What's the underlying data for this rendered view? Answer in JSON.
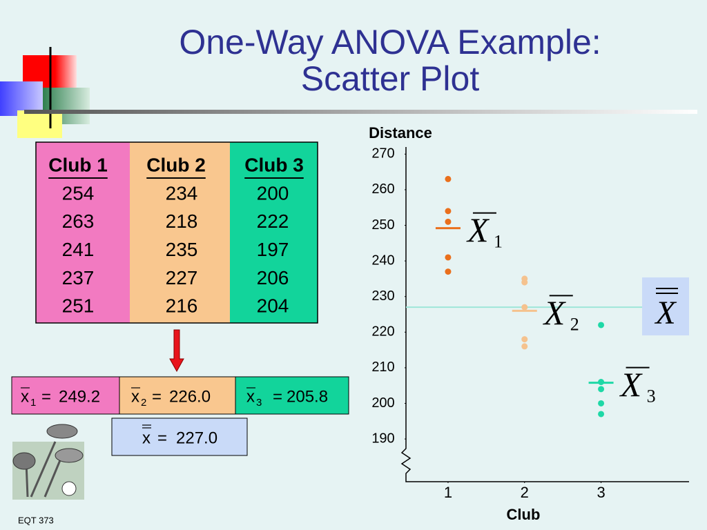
{
  "title": [
    "One-Way ANOVA Example:",
    "Scatter Plot"
  ],
  "table": {
    "headers": [
      "Club 1",
      "Club 2",
      "Club 3"
    ],
    "rows": [
      [
        254,
        234,
        200
      ],
      [
        263,
        218,
        222
      ],
      [
        241,
        235,
        197
      ],
      [
        237,
        227,
        206
      ],
      [
        251,
        216,
        204
      ]
    ]
  },
  "footer": "EQT 373",
  "chart_data": {
    "type": "scatter",
    "y_label": "Distance",
    "x_label": "Club",
    "xlim": [
      0.45,
      4.15
    ],
    "xticks": [
      1,
      2,
      3
    ],
    "ylim": [
      178,
      272
    ],
    "yticks": [
      190,
      200,
      210,
      220,
      230,
      240,
      250,
      260,
      270
    ],
    "series": [
      {
        "name": "Club 1",
        "color": "#ea6f1c",
        "x": [
          1,
          1,
          1,
          1,
          1
        ],
        "values": [
          254,
          263,
          241,
          237,
          251
        ]
      },
      {
        "name": "Club 2",
        "color": "#f5c28e",
        "x": [
          2,
          2,
          2,
          2,
          2
        ],
        "values": [
          234,
          218,
          235,
          227,
          216
        ]
      },
      {
        "name": "Club 3",
        "color": "#1ed8a6",
        "x": [
          3,
          3,
          3,
          3,
          3
        ],
        "values": [
          200,
          222,
          197,
          206,
          204
        ]
      }
    ],
    "means": [
      {
        "value": 249.2,
        "label": "249.2"
      },
      {
        "value": 226,
        "label": "226.0"
      },
      {
        "value": 205.8,
        "label": "205.8"
      }
    ],
    "mean_symbols": [
      {
        "symbol": "X",
        "sub": "1"
      },
      {
        "symbol": "X",
        "sub": "2"
      },
      {
        "symbol": "X",
        "sub": "3"
      }
    ],
    "sample_mean_symbol": "x",
    "grand_mean": {
      "value": 227,
      "label": "227.0",
      "symbol": "X"
    },
    "equals": "="
  }
}
